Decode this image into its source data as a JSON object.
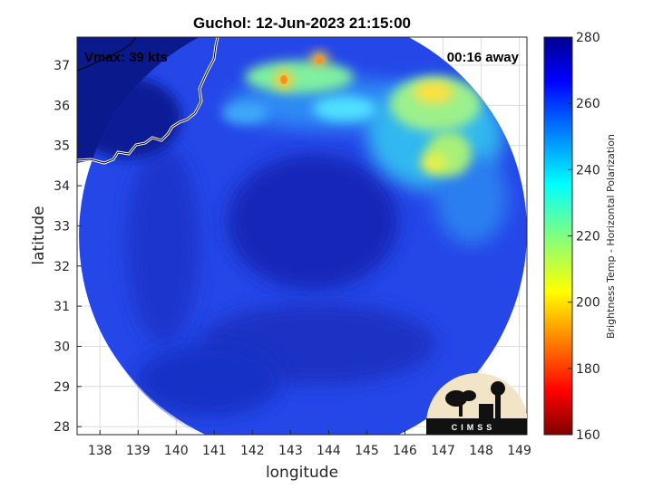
{
  "title": "Guchol: 12-Jun-2023 21:15:00",
  "annotations": {
    "vmax": "Vmax: 39 kts",
    "time_away": "00:16 away"
  },
  "logo": {
    "text": "CIMSS"
  },
  "chart_data": {
    "type": "heatmap",
    "title": "Guchol: 12-Jun-2023 21:15:00",
    "xlabel": "longitude",
    "ylabel": "latitude",
    "xlim": [
      137.4,
      149.2
    ],
    "ylim": [
      27.8,
      37.7
    ],
    "xticks": [
      "138",
      "139",
      "140",
      "141",
      "142",
      "143",
      "144",
      "145",
      "146",
      "147",
      "148",
      "149"
    ],
    "yticks": [
      "28",
      "29",
      "30",
      "31",
      "32",
      "33",
      "34",
      "35",
      "36",
      "37"
    ],
    "grid": true,
    "colorbar": {
      "label": "Brightness Temp - Horizontal Polarization",
      "range": [
        160,
        280
      ],
      "ticks": [
        "160",
        "180",
        "200",
        "220",
        "240",
        "260",
        "280"
      ],
      "colormap": "jet"
    },
    "swath": {
      "center_lon": 143.35,
      "center_lat": 32.75,
      "radius_deg_lon": 5.9
    },
    "background_value": 262,
    "features": [
      {
        "name": "storm-center-cold",
        "lon": 143.7,
        "lat": 33.0,
        "value": 268
      },
      {
        "name": "cloud-band-ne",
        "lon": 146.7,
        "lat": 36.3,
        "value": 210
      },
      {
        "name": "cloud-band-n1",
        "lon": 142.8,
        "lat": 36.6,
        "value": 200
      },
      {
        "name": "cloud-band-n2",
        "lon": 143.7,
        "lat": 37.2,
        "value": 200
      },
      {
        "name": "cloud-band-e",
        "lon": 146.6,
        "lat": 35.0,
        "value": 225
      }
    ]
  }
}
